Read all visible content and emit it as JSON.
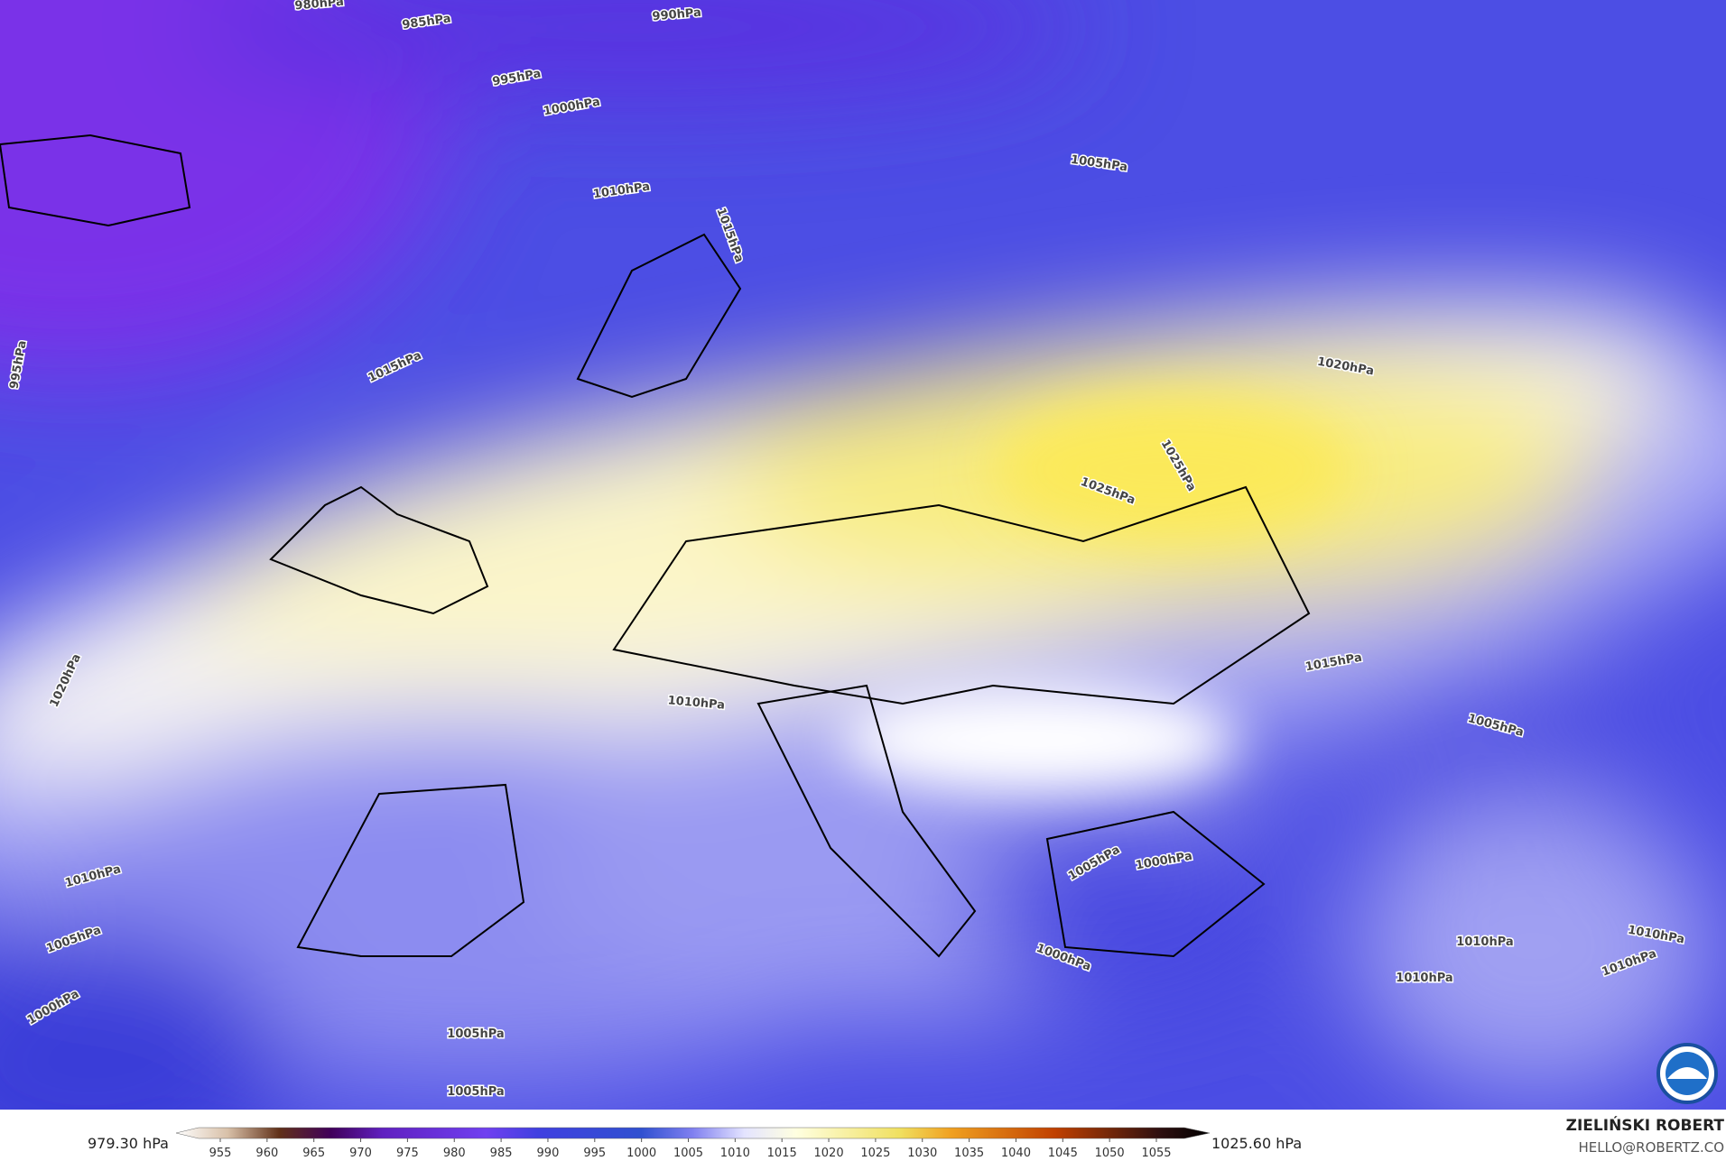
{
  "isobar_labels": [
    "980hPa",
    "985hPa",
    "990hPa",
    "995hPa",
    "1000hPa",
    "1010hPa",
    "1015hPa",
    "995hPa",
    "1015hPa",
    "1005hPa",
    "1020hPa",
    "1025hPa",
    "1025hPa",
    "1020hPa",
    "1015hPa",
    "1010hPa",
    "1005hPa",
    "1010hPa",
    "1005hPa",
    "1000hPa",
    "1005hPa",
    "1000hPa",
    "1000hPa",
    "1010hPa",
    "1010hPa",
    "1010hPa",
    "1010hPa",
    "1005hPa",
    "1005hPa"
  ],
  "colorbar": {
    "min_label": "979.30 hPa",
    "max_label": "1025.60 hPa",
    "ticks": [
      955,
      960,
      965,
      970,
      975,
      980,
      985,
      990,
      995,
      1000,
      1005,
      1010,
      1015,
      1020,
      1025,
      1030,
      1035,
      1040,
      1045,
      1050,
      1055
    ]
  },
  "author": {
    "name": "ZIELIŃSKI ROBERT",
    "email": "HELLO@ROBERTZ.CO"
  }
}
